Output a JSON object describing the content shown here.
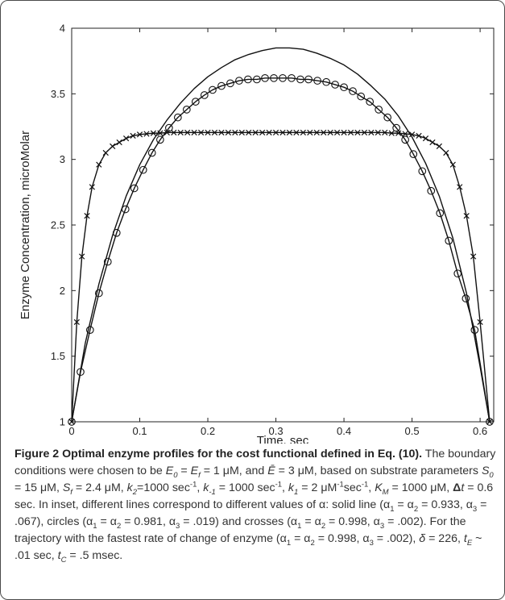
{
  "chart_data": {
    "type": "line",
    "xlabel": "Time, sec",
    "ylabel": "Enzyme Concentration, microMolar",
    "xlim": [
      0,
      0.62
    ],
    "ylim": [
      1,
      4
    ],
    "xticks": [
      0,
      0.1,
      0.2,
      0.3,
      0.4,
      0.5,
      0.6
    ],
    "xtick_labels": [
      "0",
      "0.1",
      "0.2",
      "0.3",
      "0.4",
      "0.5",
      "0.6"
    ],
    "yticks": [
      1,
      1.5,
      2,
      2.5,
      3,
      3.5,
      4
    ],
    "ytick_labels": [
      "1",
      "1.5",
      "2",
      "2.5",
      "3",
      "3.5",
      "4"
    ],
    "grid": false,
    "series": [
      {
        "marker": "solid",
        "x": [
          0,
          0.02,
          0.04,
          0.06,
          0.08,
          0.1,
          0.12,
          0.14,
          0.16,
          0.18,
          0.2,
          0.22,
          0.24,
          0.26,
          0.28,
          0.3,
          0.31,
          0.32,
          0.34,
          0.36,
          0.38,
          0.4,
          0.42,
          0.44,
          0.46,
          0.48,
          0.5,
          0.52,
          0.54,
          0.56,
          0.58,
          0.6,
          0.614
        ],
        "y": [
          1,
          1.6,
          2.05,
          2.42,
          2.72,
          2.96,
          3.15,
          3.3,
          3.43,
          3.54,
          3.63,
          3.7,
          3.76,
          3.8,
          3.83,
          3.85,
          3.85,
          3.85,
          3.84,
          3.81,
          3.77,
          3.72,
          3.65,
          3.56,
          3.46,
          3.33,
          3.17,
          2.97,
          2.72,
          2.4,
          1.98,
          1.42,
          1
        ]
      },
      {
        "marker": "circle",
        "x": [
          0,
          0.013,
          0.027,
          0.04,
          0.053,
          0.066,
          0.079,
          0.092,
          0.105,
          0.118,
          0.13,
          0.143,
          0.156,
          0.169,
          0.182,
          0.195,
          0.207,
          0.22,
          0.233,
          0.246,
          0.259,
          0.272,
          0.284,
          0.297,
          0.31,
          0.323,
          0.336,
          0.348,
          0.361,
          0.374,
          0.387,
          0.4,
          0.413,
          0.425,
          0.438,
          0.451,
          0.464,
          0.477,
          0.49,
          0.502,
          0.515,
          0.528,
          0.541,
          0.554,
          0.567,
          0.579,
          0.592,
          0.614
        ],
        "y": [
          1,
          1.38,
          1.7,
          1.98,
          2.22,
          2.44,
          2.62,
          2.78,
          2.92,
          3.05,
          3.15,
          3.24,
          3.32,
          3.38,
          3.44,
          3.49,
          3.53,
          3.56,
          3.58,
          3.6,
          3.61,
          3.61,
          3.62,
          3.62,
          3.62,
          3.62,
          3.61,
          3.61,
          3.6,
          3.59,
          3.57,
          3.55,
          3.52,
          3.48,
          3.44,
          3.38,
          3.32,
          3.24,
          3.15,
          3.04,
          2.91,
          2.76,
          2.59,
          2.38,
          2.13,
          1.94,
          1.7,
          1
        ]
      },
      {
        "marker": "cross",
        "x": [
          0,
          0.0075,
          0.015,
          0.0225,
          0.03,
          0.04,
          0.05,
          0.06,
          0.07,
          0.08,
          0.09,
          0.1,
          0.11,
          0.12,
          0.13,
          0.14,
          0.15,
          0.16,
          0.17,
          0.18,
          0.19,
          0.2,
          0.21,
          0.22,
          0.23,
          0.24,
          0.25,
          0.26,
          0.27,
          0.28,
          0.29,
          0.3,
          0.31,
          0.32,
          0.33,
          0.34,
          0.35,
          0.36,
          0.37,
          0.38,
          0.39,
          0.4,
          0.41,
          0.42,
          0.43,
          0.44,
          0.45,
          0.46,
          0.47,
          0.48,
          0.49,
          0.5,
          0.51,
          0.52,
          0.53,
          0.54,
          0.55,
          0.56,
          0.57,
          0.58,
          0.59,
          0.6,
          0.614
        ],
        "y": [
          1,
          1.76,
          2.26,
          2.57,
          2.79,
          2.96,
          3.05,
          3.1,
          3.13,
          3.16,
          3.18,
          3.19,
          3.195,
          3.2,
          3.2,
          3.205,
          3.205,
          3.205,
          3.205,
          3.205,
          3.205,
          3.205,
          3.205,
          3.205,
          3.205,
          3.205,
          3.205,
          3.205,
          3.205,
          3.205,
          3.205,
          3.205,
          3.205,
          3.205,
          3.205,
          3.205,
          3.205,
          3.205,
          3.205,
          3.205,
          3.205,
          3.205,
          3.205,
          3.205,
          3.205,
          3.205,
          3.205,
          3.205,
          3.2,
          3.2,
          3.195,
          3.19,
          3.18,
          3.16,
          3.13,
          3.1,
          3.05,
          2.96,
          2.79,
          2.57,
          2.26,
          1.76,
          1
        ]
      }
    ]
  },
  "caption": {
    "title": "Figure 2 Optimal enzyme profiles for the cost functional defined in Eq. (10).",
    "t1": " The boundary conditions were chosen to be ",
    "E": "E",
    "sub0": "0",
    "eq1": " = ",
    "sub_f": "f",
    "eq2": " = 1 μM, and ",
    "Ebar": "Ē",
    "eq3": " = 3 μM, based on substrate parameters ",
    "S": "S",
    "eq4": " = 15 μM, ",
    "eq5": " = 2.4 μM, ",
    "k": "k",
    "sub2": "2",
    "eq6": "=1000 sec",
    "sup_m1": "-1",
    "eq7": ", ",
    "sub_m1": "-1",
    "eq8": " = 1000 sec",
    "eq9": ", ",
    "sub1": "1",
    "eq10": " = 2 μM",
    "eq11": "sec",
    "eq12": ", ",
    "K": "K",
    "subM": "M",
    "eq13": " = 1000 μM, ",
    "Delta": "Δ",
    "t": "t",
    "eq14": " = 0.6 sec. In inset, different lines correspond to different values of α: solid line (α",
    "eq15": " = α",
    "eq16": " = 0.933, α",
    "sub3": "3",
    "eq17": " = .067), circles (α",
    "eq18": " = α",
    "eq19": " = 0.981, α",
    "eq20": " = .019) and crosses (α",
    "eq21": " = α",
    "eq22": " = 0.998, α",
    "eq23": " = .002). For the trajectory with the fastest rate of change of enzyme (α",
    "eq24": " = α",
    "eq25": " = 0.998, α",
    "eq26": " = .002), ",
    "delta": "δ",
    "eq27": " = 226, ",
    "subE": "E",
    "eq28": " ~ .01 sec, ",
    "subC": "C",
    "eq29": " = .5 msec."
  }
}
